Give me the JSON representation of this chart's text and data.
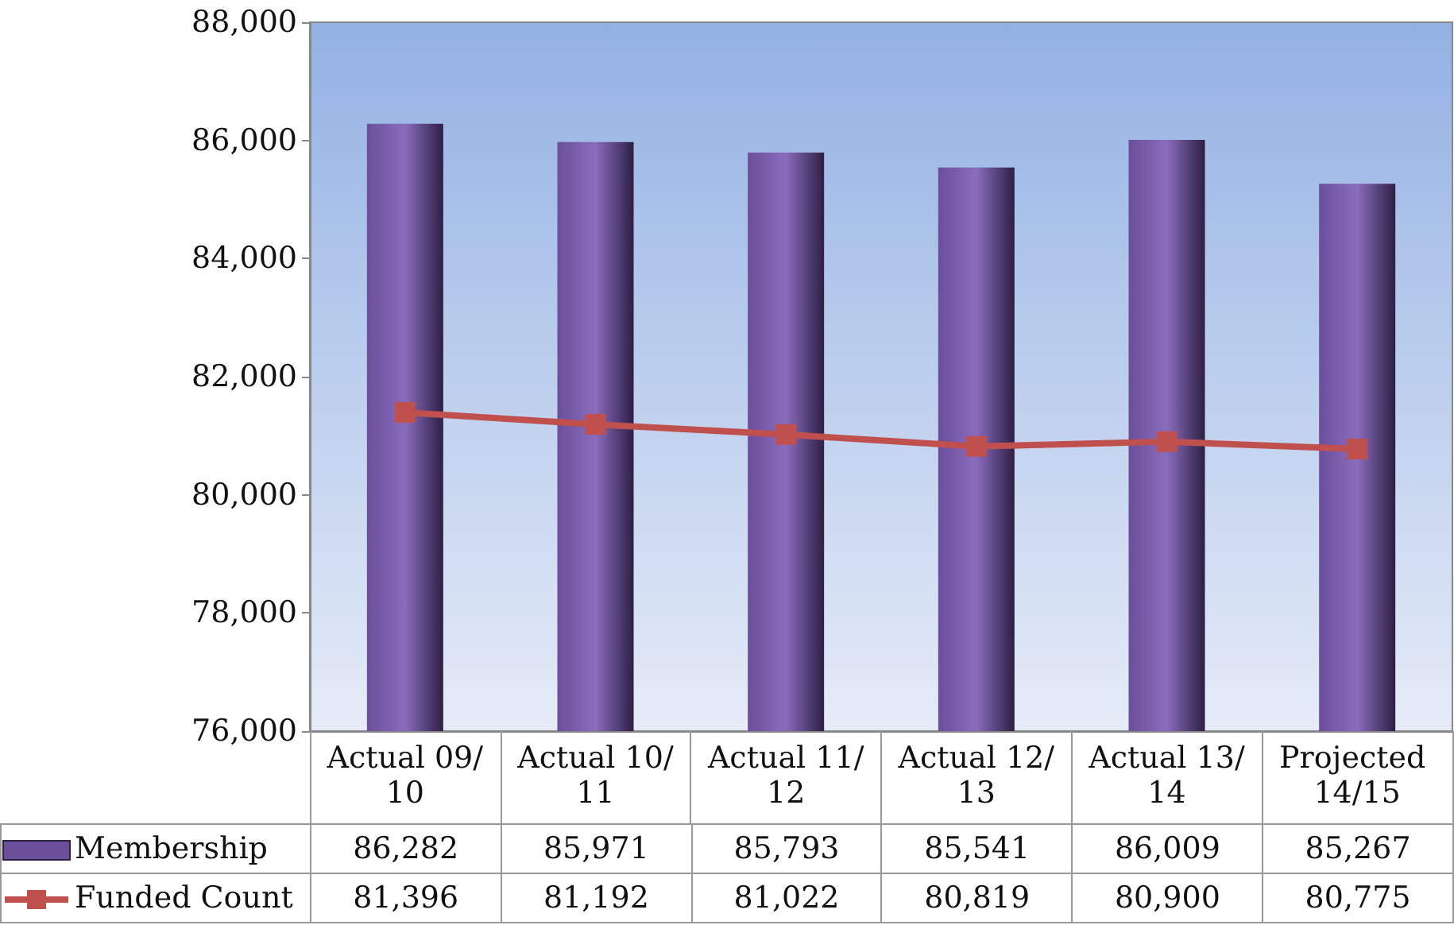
{
  "chart_data": {
    "type": "bar",
    "categories": [
      "Actual 09/10",
      "Actual 10/11",
      "Actual 11/12",
      "Actual 12/13",
      "Actual 13/14",
      "Projected 14/15"
    ],
    "series": [
      {
        "name": "Membership",
        "type": "bar",
        "color": "#6b4f9a",
        "values": [
          86282,
          85971,
          85793,
          85541,
          86009,
          85267
        ],
        "value_labels": [
          "86,282",
          "85,971",
          "85,793",
          "85,541",
          "86,009",
          "85,267"
        ]
      },
      {
        "name": "Funded Count",
        "type": "line",
        "color": "#c0504d",
        "marker": "square",
        "line_style": "solid",
        "values": [
          81396,
          81192,
          81022,
          80819,
          80900,
          80775
        ],
        "value_labels": [
          "81,396",
          "81,192",
          "81,022",
          "80,819",
          "80,900",
          "80,775"
        ]
      }
    ],
    "ylim": [
      76000,
      88000
    ],
    "yticks": [
      {
        "value": 76000,
        "label": "76,000"
      },
      {
        "value": 78000,
        "label": "78,000"
      },
      {
        "value": 80000,
        "label": "80,000"
      },
      {
        "value": 82000,
        "label": "82,000"
      },
      {
        "value": 84000,
        "label": "84,000"
      },
      {
        "value": 86000,
        "label": "86,000"
      },
      {
        "value": 88000,
        "label": "88,000"
      }
    ],
    "legend": "bottom"
  }
}
